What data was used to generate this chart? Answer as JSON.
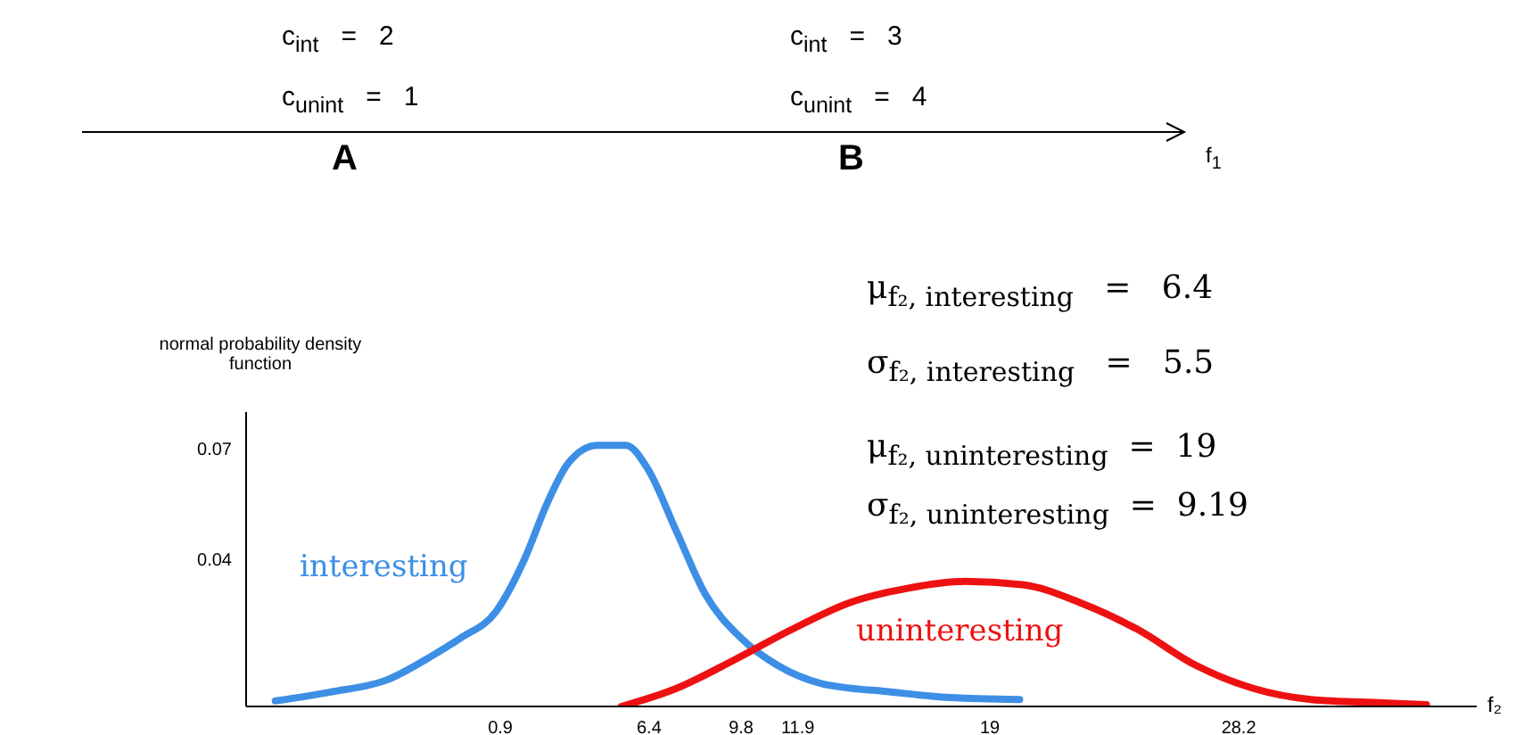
{
  "chart_data": {
    "type": "line",
    "xlabel": "f₂",
    "ylabel": "normal probability density function",
    "xlim": [
      -8.5,
      37
    ],
    "xticks": [
      0.9,
      6.4,
      9.8,
      11.9,
      19,
      28.2
    ],
    "ylim": [
      0,
      0.08
    ],
    "yticks": [
      0.04,
      0.07
    ],
    "series": [
      {
        "name": "interesting",
        "color": "#3d8fe6",
        "x": [
          -7.42,
          -5.39,
          -3.26,
          -1.66,
          -0.59,
          0.74,
          1.81,
          2.61,
          3.41,
          4.47,
          5.54,
          6.34,
          7.41,
          8.47,
          9.81,
          11.14,
          12.74,
          15.41,
          17.54,
          20.1
        ],
        "values": [
          0.0015,
          0.0039,
          0.0073,
          0.0136,
          0.0185,
          0.0258,
          0.0403,
          0.0549,
          0.0661,
          0.071,
          0.071,
          0.0647,
          0.0476,
          0.0306,
          0.0185,
          0.0112,
          0.0063,
          0.0039,
          0.0024,
          0.0019
        ]
      },
      {
        "name": "uninteresting",
        "color": "#ee1111",
        "x": [
          5.38,
          7.41,
          9.54,
          11.67,
          13.81,
          15.94,
          18.07,
          20.21,
          22.34,
          24.47,
          26.61,
          28.74,
          30.87,
          33.54,
          35.14
        ],
        "values": [
          0,
          0.0049,
          0.0126,
          0.0209,
          0.0282,
          0.0321,
          0.034,
          0.0331,
          0.0282,
          0.0209,
          0.0112,
          0.0049,
          0.0019,
          0.001,
          0.0005
        ]
      }
    ],
    "annotations": [
      "c$_{int}$   =   2",
      "c$_{unint}$   =   1",
      "A",
      "c$_{int}$   =   3",
      "c$_{unint}$   =   4",
      "B",
      "f$_{1}$",
      "μ$_{f₂, interesting}$   =   6.4",
      "σ$_{f₂, interesting}$   =   5.5",
      "μ$_{f₂, uninteresting}$  =  19",
      "σ$_{f₂, uninteresting}$  =  9.19"
    ]
  }
}
